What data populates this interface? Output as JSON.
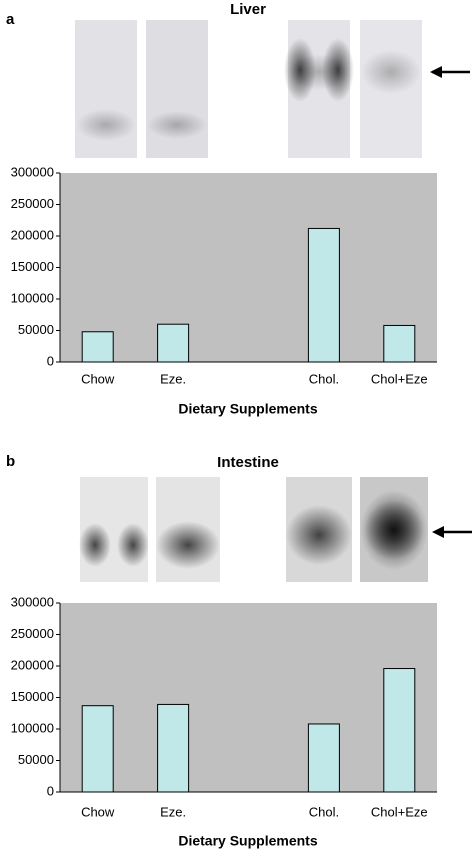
{
  "chart_data": [
    {
      "type": "bar",
      "panel_label": "a",
      "title": "Liver",
      "x_label": "Dietary Supplements",
      "categories": [
        "Chow",
        "Eze.",
        null,
        "Chol.",
        "Chol+Eze"
      ],
      "values": [
        48000,
        60000,
        null,
        212000,
        58000
      ],
      "color": "#c0e8e8",
      "plot_background": "#c0c0c0",
      "ylim": [
        0,
        300000
      ],
      "yticks": [
        0,
        50000,
        100000,
        150000,
        200000,
        250000,
        300000
      ]
    },
    {
      "type": "bar",
      "panel_label": "b",
      "title": "Intestine",
      "x_label": "Dietary Supplements",
      "categories": [
        "Chow",
        "Eze.",
        null,
        "Chol.",
        "Chol+Eze"
      ],
      "values": [
        137000,
        139000,
        null,
        108000,
        196000
      ],
      "color": "#c0e8e8",
      "plot_background": "#c0c0c0",
      "ylim": [
        0,
        300000
      ],
      "yticks": [
        0,
        50000,
        100000,
        150000,
        200000,
        250000,
        300000
      ]
    }
  ]
}
